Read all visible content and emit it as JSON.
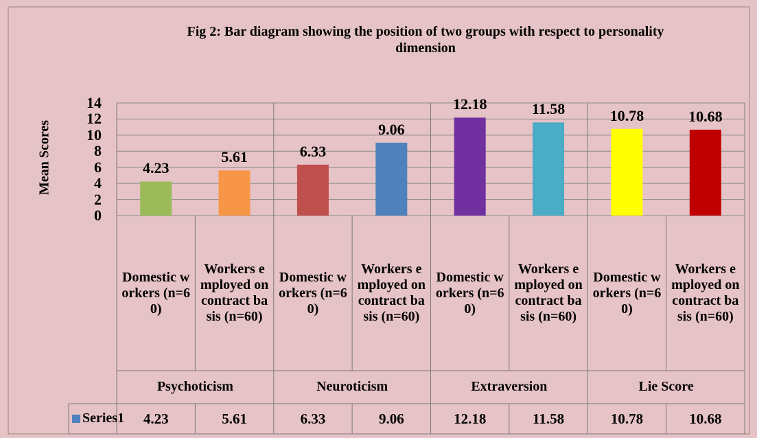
{
  "chart_data": {
    "type": "bar",
    "title": "Fig 2: Bar diagram showing the position of two groups  with respect to personality dimension",
    "y_label": "Mean Scores",
    "groups": [
      "Psychoticism",
      "Neuroticism",
      "Extraversion",
      "Lie Score"
    ],
    "categories": [
      "Domestic workers (n=60)",
      "Workers employed on contract basis (n=60)",
      "Domestic workers (n=60)",
      "Workers employed on contract basis (n=60)",
      "Domestic workers (n=60)",
      "Workers employed on contract basis (n=60)",
      "Domestic workers (n=60)",
      "Workers employed on contract basis (n=60)"
    ],
    "series": [
      {
        "name": "Series1",
        "color": "#4f81bd",
        "colors": [
          "#9bbb59",
          "#f79646",
          "#c0504d",
          "#4f81bd",
          "#7030a0",
          "#4bacc6",
          "#ffff00",
          "#c00000"
        ],
        "values": [
          4.23,
          5.61,
          6.33,
          9.06,
          12.18,
          11.58,
          10.78,
          10.68
        ]
      }
    ],
    "ylim": [
      0,
      14
    ],
    "yticks": [
      0,
      2,
      4,
      6,
      8,
      10,
      12,
      14
    ],
    "grid": true,
    "data_table": true
  }
}
